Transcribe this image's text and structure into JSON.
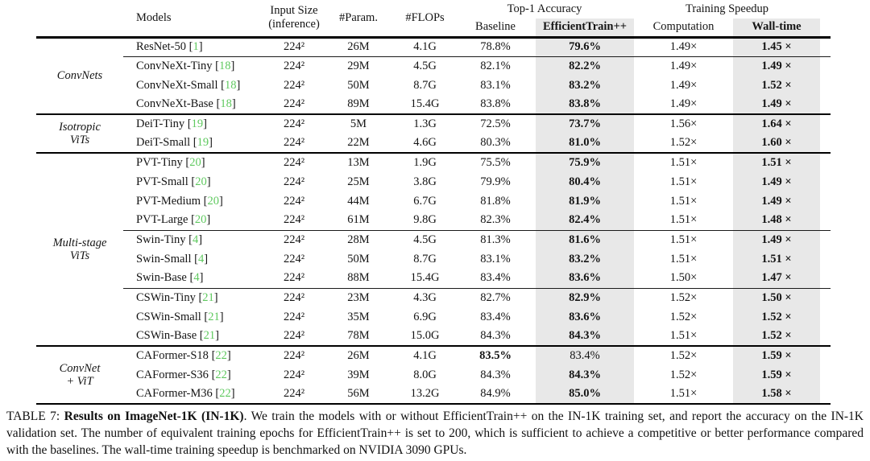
{
  "colors": {
    "citation_green": "#5fc95f",
    "column_shade": "#e8e8e8",
    "rule_color": "#000000",
    "text_color": "#141414"
  },
  "header": {
    "models": "Models",
    "input_line1": "Input Size",
    "input_line2": "(inference)",
    "params": "#Param.",
    "flops": "#FLOPs",
    "top1_group": "Top-1 Accuracy",
    "baseline": "Baseline",
    "efficienttrain": "EfficientTrain++",
    "speedup_group": "Training Speedup",
    "computation": "Computation",
    "walltime": "Wall-time"
  },
  "table": {
    "groups": [
      {
        "label_lines": [
          "ConvNets"
        ],
        "subgroups": [
          [
            {
              "model": "ResNet-50",
              "ref": "1",
              "input": "224²",
              "params": "26M",
              "flops": "4.1G",
              "baseline": "78.8%",
              "et": "79.6%",
              "comp": "1.49×",
              "wall": "1.45 ×",
              "bold_baseline": false,
              "bold_et": true
            }
          ],
          [
            {
              "model": "ConvNeXt-Tiny",
              "ref": "18",
              "input": "224²",
              "params": "29M",
              "flops": "4.5G",
              "baseline": "82.1%",
              "et": "82.2%",
              "comp": "1.49×",
              "wall": "1.49 ×",
              "bold_baseline": false,
              "bold_et": true
            },
            {
              "model": "ConvNeXt-Small",
              "ref": "18",
              "input": "224²",
              "params": "50M",
              "flops": "8.7G",
              "baseline": "83.1%",
              "et": "83.2%",
              "comp": "1.49×",
              "wall": "1.52 ×",
              "bold_baseline": false,
              "bold_et": true
            },
            {
              "model": "ConvNeXt-Base",
              "ref": "18",
              "input": "224²",
              "params": "89M",
              "flops": "15.4G",
              "baseline": "83.8%",
              "et": "83.8%",
              "comp": "1.49×",
              "wall": "1.49 ×",
              "bold_baseline": false,
              "bold_et": true
            }
          ]
        ]
      },
      {
        "label_lines": [
          "Isotropic",
          "ViTs"
        ],
        "subgroups": [
          [
            {
              "model": "DeiT-Tiny",
              "ref": "19",
              "input": "224²",
              "params": "5M",
              "flops": "1.3G",
              "baseline": "72.5%",
              "et": "73.7%",
              "comp": "1.56×",
              "wall": "1.64 ×",
              "bold_baseline": false,
              "bold_et": true
            },
            {
              "model": "DeiT-Small",
              "ref": "19",
              "input": "224²",
              "params": "22M",
              "flops": "4.6G",
              "baseline": "80.3%",
              "et": "81.0%",
              "comp": "1.52×",
              "wall": "1.60 ×",
              "bold_baseline": false,
              "bold_et": true
            }
          ]
        ]
      },
      {
        "label_lines": [
          "Multi-stage",
          "ViTs"
        ],
        "subgroups": [
          [
            {
              "model": "PVT-Tiny",
              "ref": "20",
              "input": "224²",
              "params": "13M",
              "flops": "1.9G",
              "baseline": "75.5%",
              "et": "75.9%",
              "comp": "1.51×",
              "wall": "1.51 ×",
              "bold_baseline": false,
              "bold_et": true
            },
            {
              "model": "PVT-Small",
              "ref": "20",
              "input": "224²",
              "params": "25M",
              "flops": "3.8G",
              "baseline": "79.9%",
              "et": "80.4%",
              "comp": "1.51×",
              "wall": "1.49 ×",
              "bold_baseline": false,
              "bold_et": true
            },
            {
              "model": "PVT-Medium",
              "ref": "20",
              "input": "224²",
              "params": "44M",
              "flops": "6.7G",
              "baseline": "81.8%",
              "et": "81.9%",
              "comp": "1.51×",
              "wall": "1.49 ×",
              "bold_baseline": false,
              "bold_et": true
            },
            {
              "model": "PVT-Large",
              "ref": "20",
              "input": "224²",
              "params": "61M",
              "flops": "9.8G",
              "baseline": "82.3%",
              "et": "82.4%",
              "comp": "1.51×",
              "wall": "1.48 ×",
              "bold_baseline": false,
              "bold_et": true
            }
          ],
          [
            {
              "model": "Swin-Tiny",
              "ref": "4",
              "input": "224²",
              "params": "28M",
              "flops": "4.5G",
              "baseline": "81.3%",
              "et": "81.6%",
              "comp": "1.51×",
              "wall": "1.49 ×",
              "bold_baseline": false,
              "bold_et": true
            },
            {
              "model": "Swin-Small",
              "ref": "4",
              "input": "224²",
              "params": "50M",
              "flops": "8.7G",
              "baseline": "83.1%",
              "et": "83.2%",
              "comp": "1.51×",
              "wall": "1.51 ×",
              "bold_baseline": false,
              "bold_et": true
            },
            {
              "model": "Swin-Base",
              "ref": "4",
              "input": "224²",
              "params": "88M",
              "flops": "15.4G",
              "baseline": "83.4%",
              "et": "83.6%",
              "comp": "1.50×",
              "wall": "1.47 ×",
              "bold_baseline": false,
              "bold_et": true
            }
          ],
          [
            {
              "model": "CSWin-Tiny",
              "ref": "21",
              "input": "224²",
              "params": "23M",
              "flops": "4.3G",
              "baseline": "82.7%",
              "et": "82.9%",
              "comp": "1.52×",
              "wall": "1.50 ×",
              "bold_baseline": false,
              "bold_et": true
            },
            {
              "model": "CSWin-Small",
              "ref": "21",
              "input": "224²",
              "params": "35M",
              "flops": "6.9G",
              "baseline": "83.4%",
              "et": "83.6%",
              "comp": "1.52×",
              "wall": "1.52 ×",
              "bold_baseline": false,
              "bold_et": true
            },
            {
              "model": "CSWin-Base",
              "ref": "21",
              "input": "224²",
              "params": "78M",
              "flops": "15.0G",
              "baseline": "84.3%",
              "et": "84.3%",
              "comp": "1.51×",
              "wall": "1.52 ×",
              "bold_baseline": false,
              "bold_et": true
            }
          ]
        ]
      },
      {
        "label_lines": [
          "ConvNet",
          "+ ViT"
        ],
        "subgroups": [
          [
            {
              "model": "CAFormer-S18",
              "ref": "22",
              "input": "224²",
              "params": "26M",
              "flops": "4.1G",
              "baseline": "83.5%",
              "et": "83.4%",
              "comp": "1.52×",
              "wall": "1.59 ×",
              "bold_baseline": true,
              "bold_et": false
            },
            {
              "model": "CAFormer-S36",
              "ref": "22",
              "input": "224²",
              "params": "39M",
              "flops": "8.0G",
              "baseline": "84.3%",
              "et": "84.3%",
              "comp": "1.52×",
              "wall": "1.59 ×",
              "bold_baseline": false,
              "bold_et": true
            },
            {
              "model": "CAFormer-M36",
              "ref": "22",
              "input": "224²",
              "params": "56M",
              "flops": "13.2G",
              "baseline": "84.9%",
              "et": "85.0%",
              "comp": "1.51×",
              "wall": "1.58 ×",
              "bold_baseline": false,
              "bold_et": true
            }
          ]
        ]
      }
    ]
  },
  "caption": {
    "label": "TABLE 7: ",
    "title": "Results on ImageNet-1K (IN-1K)",
    "text": ". We train the models with or without EfficientTrain++ on the IN-1K training set, and report the accuracy on the IN-1K validation set. The number of equivalent training epochs for EfficientTrain++ is set to 200, which is sufficient to achieve a competitive or better performance compared with the baselines. The wall-time training speedup is benchmarked on NVIDIA 3090 GPUs."
  }
}
